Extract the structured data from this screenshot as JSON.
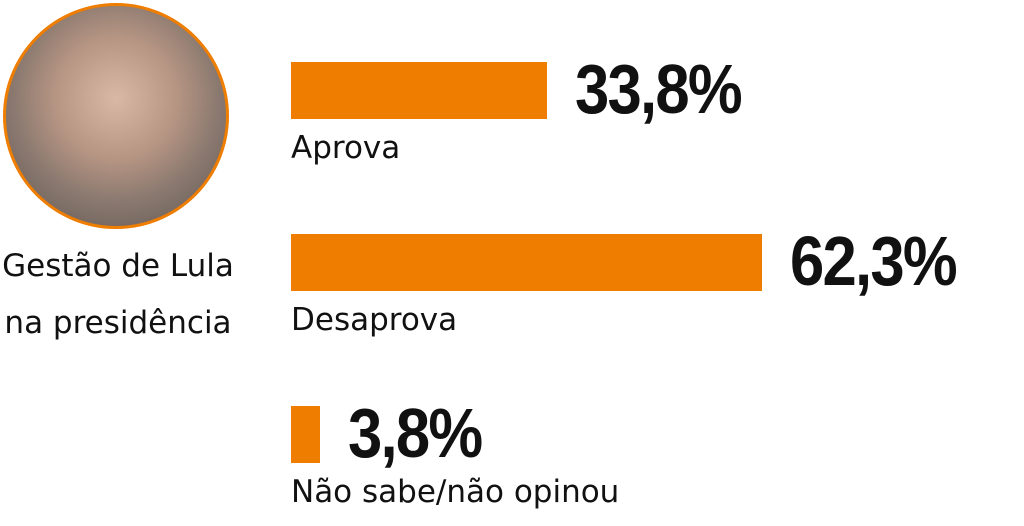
{
  "chart_data": {
    "type": "bar",
    "title": "Gestão de Lula na presidência",
    "categories": [
      "Aprova",
      "Desaprova",
      "Não sabe/não opinou"
    ],
    "values": [
      33.8,
      62.3,
      3.8
    ],
    "value_labels": [
      "33,8%",
      "62,3%",
      "3,8%"
    ],
    "color": "#ee7d00"
  }
}
